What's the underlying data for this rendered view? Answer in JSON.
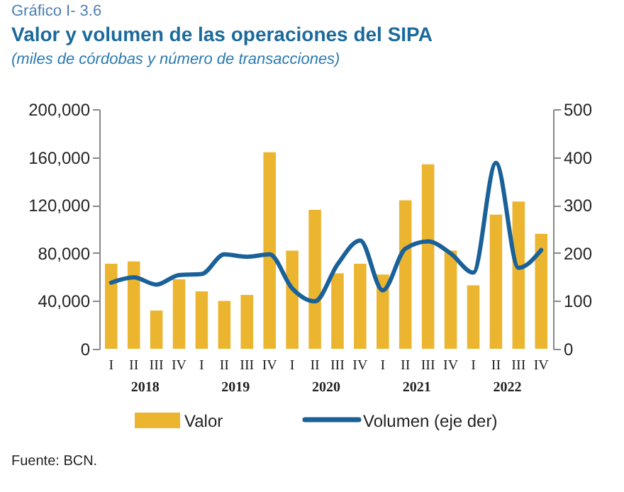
{
  "chart_data": {
    "type": "bar",
    "title": "Valor y volumen de las operaciones del SIPA",
    "subtitle": "(miles de córdobas y número de transacciones)",
    "categories": [
      "I",
      "II",
      "III",
      "IV",
      "I",
      "II",
      "III",
      "IV",
      "I",
      "II",
      "III",
      "IV",
      "I",
      "II",
      "III",
      "IV",
      "I",
      "II",
      "III",
      "IV"
    ],
    "series": [
      {
        "name": "Valor",
        "color": "#ecb52f",
        "values": [
          71000,
          73000,
          32000,
          58000,
          48000,
          40000,
          45000,
          164000,
          82000,
          116000,
          63000,
          71000,
          62000,
          124000,
          154000,
          82000,
          53000,
          112000,
          123000,
          96000
        ]
      },
      {
        "name": "Volumen (eje der)",
        "type": "line",
        "axis": "y2",
        "color": "#1a6199",
        "values": [
          138,
          149,
          134,
          154,
          156,
          197,
          192,
          197,
          126,
          99,
          176,
          226,
          122,
          209,
          224,
          199,
          159,
          388,
          169,
          206
        ]
      }
    ],
    "ylim": [
      0,
      200000
    ],
    "yticks": [
      0,
      {
        "value": 40000,
        "label": "40,000"
      },
      {
        "value": 80000,
        "label": "80,000"
      },
      {
        "value": 120000,
        "label": "120,000"
      },
      {
        "value": 160000,
        "label": "160,000"
      },
      {
        "value": 200000,
        "label": "200,000"
      }
    ],
    "y2lim": [
      0,
      500
    ],
    "y2ticks": [
      0,
      100,
      200,
      300,
      400,
      500
    ],
    "grid": false,
    "legend": "bottom",
    "annotations": [
      "Gráfico I- 3.6",
      "2018",
      "2019",
      "2020",
      "2021",
      "2022",
      "Fuente: BCN."
    ]
  }
}
